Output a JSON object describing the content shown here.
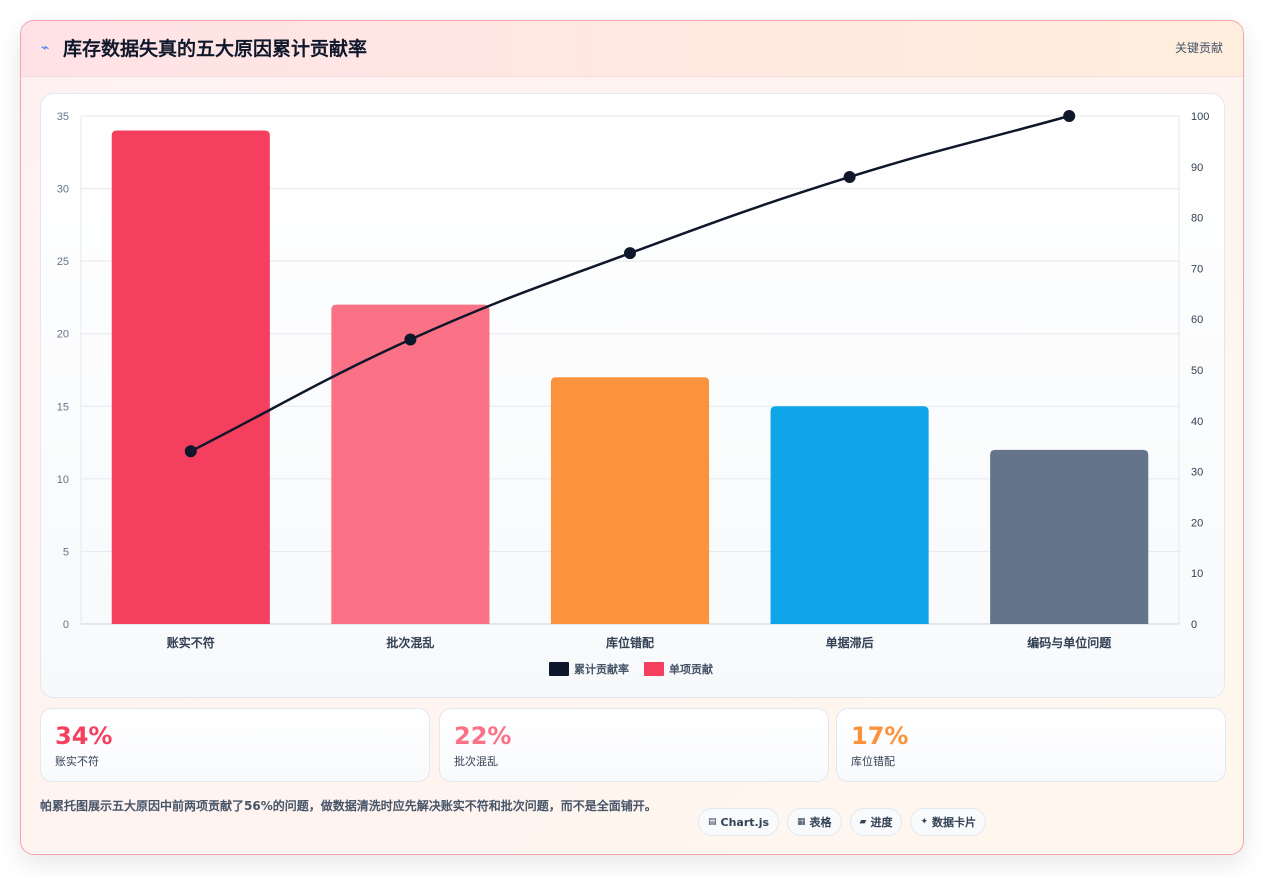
{
  "header": {
    "title": "库存数据失真的五大原因累计贡献率",
    "title_icon": "lightning-icon",
    "badge": "关键贡献"
  },
  "chart_data": {
    "type": "bar",
    "categories": [
      "账实不符",
      "批次混乱",
      "库位错配",
      "单据滞后",
      "编码与单位问题"
    ],
    "series": [
      {
        "name": "单项贡献",
        "type": "bar",
        "axis": "left",
        "values": [
          34,
          22,
          17,
          15,
          12
        ],
        "colors": [
          "#f43f5e",
          "#fb7185",
          "#fb923c",
          "#0ea5e9",
          "#64748b"
        ]
      },
      {
        "name": "累计贡献率",
        "type": "line",
        "axis": "right",
        "values": [
          34,
          56,
          73,
          88,
          100
        ],
        "color": "#0f172a"
      }
    ],
    "y_left": {
      "min": 0,
      "max": 35,
      "ticks": [
        "0",
        "5",
        "10",
        "15",
        "20",
        "25",
        "30",
        "35"
      ]
    },
    "y_right": {
      "min": 0,
      "max": 100,
      "ticks": [
        "0",
        "10",
        "20",
        "30",
        "40",
        "50",
        "60",
        "70",
        "80",
        "90",
        "100"
      ]
    },
    "legend": {
      "position": "bottom",
      "items": [
        "累计贡献率",
        "单项贡献"
      ]
    },
    "grid": true
  },
  "stats": [
    {
      "value": "34%",
      "label": "账实不符",
      "color": "#f43f5e"
    },
    {
      "value": "22%",
      "label": "批次混乱",
      "color": "#fb7185"
    },
    {
      "value": "17%",
      "label": "库位错配",
      "color": "#fb923c"
    }
  ],
  "footer": {
    "text": "帕累托图展示五大原因中前两项贡献了56%的问题，做数据清洗时应先解决账实不符和批次问题，而不是全面铺开。",
    "chips": [
      {
        "icon": "chart-icon",
        "glyph": "▤",
        "label": "Chart.js"
      },
      {
        "icon": "table-icon",
        "glyph": "▦",
        "label": "表格"
      },
      {
        "icon": "progress-icon",
        "glyph": "▰",
        "label": "进度"
      },
      {
        "icon": "data-card-icon",
        "glyph": "✦",
        "label": "数据卡片"
      }
    ]
  }
}
